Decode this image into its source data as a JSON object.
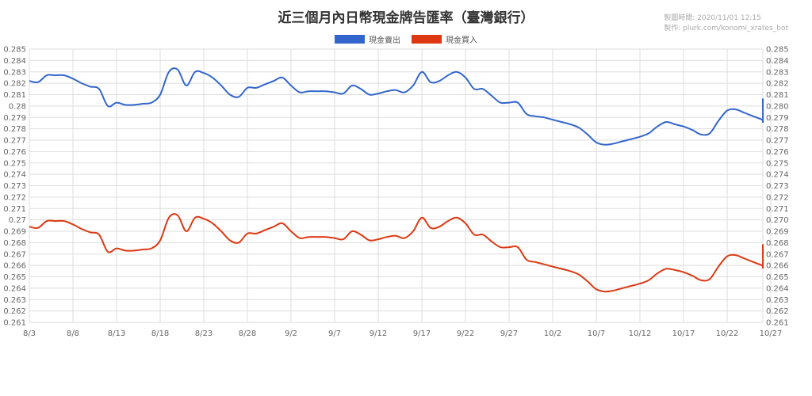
{
  "header": {
    "title": "近三個月內日幣現金牌告匯率（臺灣銀行）",
    "made_time": "製圖時間: 2020/11/01 12:15",
    "made_by": "製作: plurk.com/konomi_xrates_bot"
  },
  "chart_data": {
    "type": "line",
    "title": "近三個月內日幣現金牌告匯率（臺灣銀行）",
    "xlabel": "",
    "ylabel": "",
    "ylim": [
      0.261,
      0.285
    ],
    "grid": true,
    "legend_position": "top-center",
    "y_ticks": [
      "0.285",
      "0.284",
      "0.283",
      "0.282",
      "0.281",
      "0.28",
      "0.279",
      "0.278",
      "0.277",
      "0.276",
      "0.275",
      "0.274",
      "0.273",
      "0.272",
      "0.271",
      "0.27",
      "0.269",
      "0.268",
      "0.267",
      "0.266",
      "0.265",
      "0.264",
      "0.263",
      "0.262",
      "0.261"
    ],
    "y_ticks_right": [
      "0.285",
      "0.284",
      "0.283",
      "0.282",
      "0.281",
      "0.280",
      "0.279",
      "0.278",
      "0.277",
      "0.276",
      "0.275",
      "0.274",
      "0.273",
      "0.272",
      "0.271",
      "0.270",
      "0.269",
      "0.268",
      "0.267",
      "0.266",
      "0.265",
      "0.264",
      "0.263",
      "0.262",
      "0.261"
    ],
    "x_ticks": [
      "8/3",
      "8/8",
      "8/13",
      "8/18",
      "8/23",
      "8/28",
      "9/2",
      "9/7",
      "9/12",
      "9/17",
      "9/22",
      "9/27",
      "10/2",
      "10/7",
      "10/12",
      "10/17",
      "10/22",
      "10/27"
    ],
    "x_tick_day_index": [
      0,
      5,
      10,
      15,
      20,
      25,
      30,
      35,
      40,
      45,
      50,
      55,
      60,
      65,
      70,
      75,
      80,
      85
    ],
    "x_day_range": [
      0,
      86
    ],
    "series": [
      {
        "name": "現金賣出",
        "color": "#3366cc",
        "points": [
          [
            0,
            0.2822
          ],
          [
            1,
            0.2821
          ],
          [
            2,
            0.2827
          ],
          [
            3,
            0.2827
          ],
          [
            4,
            0.2827
          ],
          [
            5,
            0.2824
          ],
          [
            6,
            0.282
          ],
          [
            7,
            0.2817
          ],
          [
            8,
            0.2815
          ],
          [
            9,
            0.28
          ],
          [
            10,
            0.2803
          ],
          [
            11,
            0.2801
          ],
          [
            12,
            0.2801
          ],
          [
            13,
            0.2802
          ],
          [
            14,
            0.2803
          ],
          [
            15,
            0.281
          ],
          [
            16,
            0.283
          ],
          [
            17,
            0.2832
          ],
          [
            18,
            0.2818
          ],
          [
            19,
            0.283
          ],
          [
            20,
            0.2829
          ],
          [
            21,
            0.2825
          ],
          [
            22,
            0.2818
          ],
          [
            23,
            0.281
          ],
          [
            24,
            0.2808
          ],
          [
            25,
            0.2816
          ],
          [
            26,
            0.2816
          ],
          [
            27,
            0.2819
          ],
          [
            28,
            0.2822
          ],
          [
            29,
            0.2825
          ],
          [
            30,
            0.2818
          ],
          [
            31,
            0.2812
          ],
          [
            32,
            0.2813
          ],
          [
            33,
            0.2813
          ],
          [
            34,
            0.2813
          ],
          [
            35,
            0.2812
          ],
          [
            36,
            0.2811
          ],
          [
            37,
            0.2818
          ],
          [
            38,
            0.2815
          ],
          [
            39,
            0.281
          ],
          [
            40,
            0.2811
          ],
          [
            41,
            0.2813
          ],
          [
            42,
            0.2814
          ],
          [
            43,
            0.2812
          ],
          [
            44,
            0.2818
          ],
          [
            45,
            0.283
          ],
          [
            46,
            0.2821
          ],
          [
            47,
            0.2822
          ],
          [
            48,
            0.2827
          ],
          [
            49,
            0.283
          ],
          [
            50,
            0.2825
          ],
          [
            51,
            0.2815
          ],
          [
            52,
            0.2815
          ],
          [
            53,
            0.2809
          ],
          [
            54,
            0.2803
          ],
          [
            55,
            0.2803
          ],
          [
            56,
            0.2803
          ],
          [
            57,
            0.2793
          ],
          [
            58,
            0.2791
          ],
          [
            59,
            0.279
          ],
          [
            60,
            0.2788
          ],
          [
            61,
            0.2786
          ],
          [
            62,
            0.2784
          ],
          [
            63,
            0.2781
          ],
          [
            64,
            0.2775
          ],
          [
            65,
            0.2768
          ],
          [
            66,
            0.2766
          ],
          [
            67,
            0.2767
          ],
          [
            68,
            0.2769
          ],
          [
            69,
            0.2771
          ],
          [
            70,
            0.2773
          ],
          [
            71,
            0.2776
          ],
          [
            72,
            0.2782
          ],
          [
            73,
            0.2786
          ],
          [
            74,
            0.2784
          ],
          [
            75,
            0.2782
          ],
          [
            76,
            0.2779
          ],
          [
            77,
            0.2775
          ],
          [
            78,
            0.2776
          ],
          [
            79,
            0.2787
          ],
          [
            80,
            0.2796
          ],
          [
            81,
            0.2797
          ],
          [
            82,
            0.2794
          ],
          [
            83,
            0.2791
          ],
          [
            84,
            0.2788
          ],
          [
            85,
            0.2787
          ],
          [
            86,
            0.2805
          ],
          [
            87,
            0.2804
          ],
          [
            88,
            0.2804
          ]
        ]
      },
      {
        "name": "現金買入",
        "color": "#dc3912",
        "points": [
          [
            0,
            0.2694
          ],
          [
            1,
            0.2693
          ],
          [
            2,
            0.2699
          ],
          [
            3,
            0.2699
          ],
          [
            4,
            0.2699
          ],
          [
            5,
            0.2696
          ],
          [
            6,
            0.2692
          ],
          [
            7,
            0.2689
          ],
          [
            8,
            0.2687
          ],
          [
            9,
            0.2672
          ],
          [
            10,
            0.2675
          ],
          [
            11,
            0.2673
          ],
          [
            12,
            0.2673
          ],
          [
            13,
            0.2674
          ],
          [
            14,
            0.2675
          ],
          [
            15,
            0.2682
          ],
          [
            16,
            0.2702
          ],
          [
            17,
            0.2704
          ],
          [
            18,
            0.269
          ],
          [
            19,
            0.2702
          ],
          [
            20,
            0.2701
          ],
          [
            21,
            0.2697
          ],
          [
            22,
            0.269
          ],
          [
            23,
            0.2682
          ],
          [
            24,
            0.268
          ],
          [
            25,
            0.2688
          ],
          [
            26,
            0.2688
          ],
          [
            27,
            0.2691
          ],
          [
            28,
            0.2694
          ],
          [
            29,
            0.2697
          ],
          [
            30,
            0.269
          ],
          [
            31,
            0.2684
          ],
          [
            32,
            0.2685
          ],
          [
            33,
            0.2685
          ],
          [
            34,
            0.2685
          ],
          [
            35,
            0.2684
          ],
          [
            36,
            0.2683
          ],
          [
            37,
            0.269
          ],
          [
            38,
            0.2687
          ],
          [
            39,
            0.2682
          ],
          [
            40,
            0.2683
          ],
          [
            41,
            0.2685
          ],
          [
            42,
            0.2686
          ],
          [
            43,
            0.2684
          ],
          [
            44,
            0.269
          ],
          [
            45,
            0.2702
          ],
          [
            46,
            0.2693
          ],
          [
            47,
            0.2694
          ],
          [
            48,
            0.2699
          ],
          [
            49,
            0.2702
          ],
          [
            50,
            0.2697
          ],
          [
            51,
            0.2687
          ],
          [
            52,
            0.2687
          ],
          [
            53,
            0.2681
          ],
          [
            54,
            0.2676
          ],
          [
            55,
            0.2676
          ],
          [
            56,
            0.2676
          ],
          [
            57,
            0.2665
          ],
          [
            58,
            0.2663
          ],
          [
            59,
            0.2661
          ],
          [
            60,
            0.2659
          ],
          [
            61,
            0.2657
          ],
          [
            62,
            0.2655
          ],
          [
            63,
            0.2652
          ],
          [
            64,
            0.2646
          ],
          [
            65,
            0.2639
          ],
          [
            66,
            0.2637
          ],
          [
            67,
            0.2638
          ],
          [
            68,
            0.264
          ],
          [
            69,
            0.2642
          ],
          [
            70,
            0.2644
          ],
          [
            71,
            0.2647
          ],
          [
            72,
            0.2653
          ],
          [
            73,
            0.2657
          ],
          [
            74,
            0.2656
          ],
          [
            75,
            0.2654
          ],
          [
            76,
            0.2651
          ],
          [
            77,
            0.2647
          ],
          [
            78,
            0.2648
          ],
          [
            79,
            0.2659
          ],
          [
            80,
            0.2668
          ],
          [
            81,
            0.2669
          ],
          [
            82,
            0.2666
          ],
          [
            83,
            0.2663
          ],
          [
            84,
            0.266
          ],
          [
            85,
            0.2659
          ],
          [
            86,
            0.2677
          ],
          [
            87,
            0.2676
          ],
          [
            88,
            0.2676
          ]
        ]
      }
    ]
  },
  "colors": {
    "grid": "#dddddd",
    "axis": "#999999",
    "series_sell": "#3366cc",
    "series_buy": "#dc3912"
  }
}
